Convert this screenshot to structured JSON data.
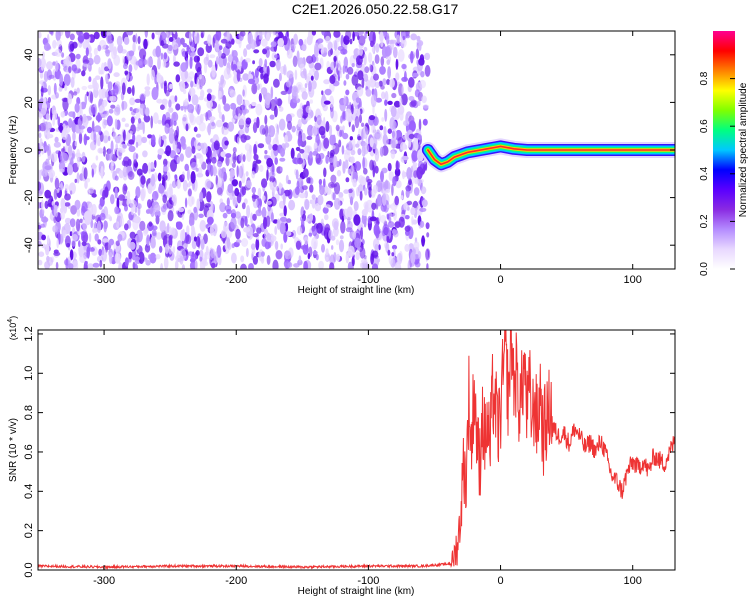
{
  "title": "C2E1.2026.050.22.58.G17",
  "chart_data": [
    {
      "type": "heatmap",
      "xlabel": "Height of straight line (km)",
      "ylabel": "Frequency (Hz)",
      "xlim": [
        -350,
        132
      ],
      "ylim": [
        -50,
        50
      ],
      "xticks": [
        -300,
        -200,
        -100,
        0,
        100
      ],
      "yticks": [
        -40,
        -20,
        0,
        20,
        40
      ],
      "colorbar": {
        "label": "Normalized spectral amplitude",
        "range": [
          0.0,
          1.0
        ],
        "ticks": [
          0.0,
          0.2,
          0.4,
          0.6,
          0.8
        ],
        "tick_labels": [
          "0.0",
          "0.2",
          "0.4",
          "0.6",
          "0.8"
        ],
        "colormap": [
          "#ffffff",
          "#e8d8ff",
          "#b48cff",
          "#8a2be2",
          "#5a00ff",
          "#0000ff",
          "#00c8ff",
          "#00ff80",
          "#80ff00",
          "#ffff00",
          "#ff8000",
          "#ff0000",
          "#ff0090"
        ]
      },
      "noise_region_x": [
        -350,
        -55
      ],
      "signal_track": {
        "x": [
          -55,
          -50,
          -45,
          -40,
          -35,
          -30,
          -25,
          -20,
          -15,
          -10,
          -5,
          0,
          5,
          10,
          20,
          40,
          60,
          80,
          100,
          132
        ],
        "y": [
          0,
          -4,
          -6,
          -5,
          -3,
          -2,
          -1,
          -0.5,
          0,
          0.5,
          1,
          1.5,
          1,
          0.5,
          0,
          0,
          0,
          0,
          0,
          0
        ],
        "peak_amplitude": 1.0
      }
    },
    {
      "type": "line",
      "xlabel": "Height of straight line (km)",
      "ylabel": "SNR (10 * v/v)",
      "y_multiplier_label": "(x10",
      "y_multiplier_exp": "4",
      "xlim": [
        -350,
        132
      ],
      "ylim": [
        0,
        1.22
      ],
      "xticks": [
        -300,
        -200,
        -100,
        0,
        100
      ],
      "yticks": [
        0.0,
        0.2,
        0.4,
        0.6,
        0.8,
        1.0,
        1.2
      ],
      "ytick_labels": [
        "0.0",
        "0.2",
        "0.4",
        "0.6",
        "0.8",
        "1.0",
        "1.2"
      ],
      "color": "#ee3333",
      "x": [
        -350,
        -300,
        -250,
        -200,
        -150,
        -100,
        -60,
        -40,
        -36,
        -32,
        -30,
        -28,
        -26,
        -24,
        -22,
        -20,
        -18,
        -16,
        -14,
        -12,
        -10,
        -8,
        -6,
        -4,
        -2,
        0,
        2,
        4,
        6,
        8,
        10,
        12,
        14,
        16,
        18,
        20,
        22,
        24,
        26,
        28,
        30,
        32,
        34,
        36,
        38,
        40,
        44,
        48,
        52,
        56,
        60,
        64,
        68,
        72,
        76,
        80,
        84,
        88,
        92,
        96,
        100,
        104,
        108,
        112,
        116,
        120,
        124,
        128,
        132
      ],
      "y": [
        0.02,
        0.015,
        0.02,
        0.02,
        0.015,
        0.02,
        0.02,
        0.03,
        0.05,
        0.15,
        0.3,
        0.55,
        0.45,
        0.9,
        0.6,
        0.95,
        0.7,
        0.5,
        0.8,
        0.65,
        0.75,
        0.6,
        0.9,
        0.85,
        0.7,
        0.8,
        1.0,
        1.1,
        0.85,
        1.22,
        0.95,
        1.0,
        0.85,
        0.9,
        1.05,
        0.8,
        0.92,
        0.75,
        0.88,
        0.7,
        0.95,
        0.68,
        0.74,
        0.78,
        0.85,
        0.72,
        0.68,
        0.7,
        0.64,
        0.72,
        0.68,
        0.62,
        0.65,
        0.6,
        0.66,
        0.58,
        0.48,
        0.45,
        0.4,
        0.5,
        0.55,
        0.52,
        0.55,
        0.5,
        0.58,
        0.56,
        0.54,
        0.6,
        0.66
      ]
    }
  ]
}
